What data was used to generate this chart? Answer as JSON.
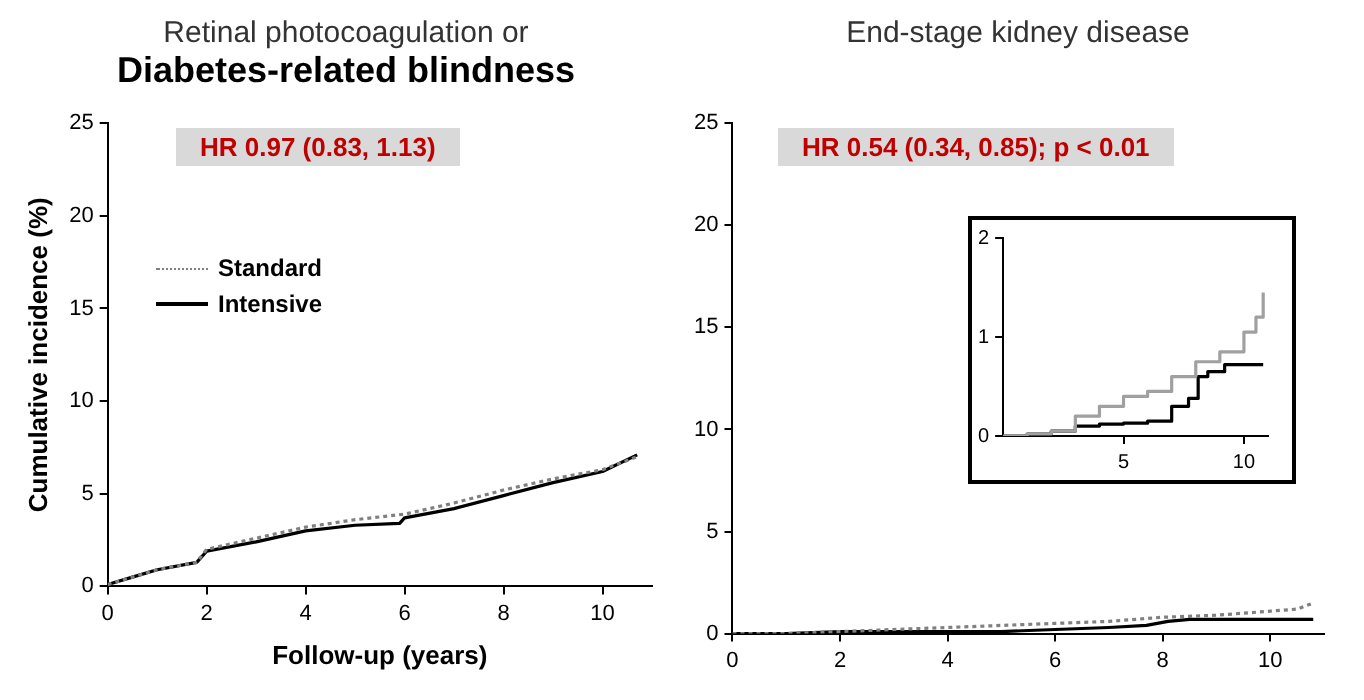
{
  "chart_data": [
    {
      "type": "line",
      "title": "Retinal photocoagulation or",
      "subtitle": "Diabetes-related blindness",
      "xlabel": "Follow-up (years)",
      "ylabel": "Cumulative incidence (%)",
      "annotations": [
        "HR 0.97 (0.83, 1.13)"
      ],
      "xlim": [
        0,
        11
      ],
      "ylim": [
        0,
        25
      ],
      "xticks": [
        0,
        2,
        4,
        6,
        8,
        10
      ],
      "yticks": [
        0,
        5,
        10,
        15,
        20,
        25
      ],
      "grid": false,
      "legend": "top left",
      "marker": "none",
      "series": [
        {
          "name": "Standard",
          "color": "#808080",
          "line_style": "dotted",
          "x": [
            0,
            0.5,
            1,
            1.8,
            2,
            3,
            4,
            5,
            6,
            7,
            8,
            9,
            10,
            10.7
          ],
          "values": [
            0.1,
            0.5,
            0.9,
            1.3,
            2.0,
            2.6,
            3.2,
            3.6,
            3.9,
            4.5,
            5.2,
            5.8,
            6.3,
            7.0
          ]
        },
        {
          "name": "Intensive",
          "color": "#000000",
          "line_style": "solid",
          "x": [
            0,
            0.5,
            1,
            1.8,
            2,
            3,
            4,
            5,
            5.9,
            6,
            7,
            8,
            9,
            10,
            10.7
          ],
          "values": [
            0.1,
            0.5,
            0.9,
            1.3,
            1.9,
            2.4,
            3.0,
            3.3,
            3.4,
            3.7,
            4.2,
            4.9,
            5.6,
            6.2,
            7.1
          ]
        }
      ]
    },
    {
      "type": "line",
      "title": "End-stage kidney disease",
      "annotations": [
        "HR 0.54 (0.34, 0.85); p < 0.01"
      ],
      "xlim": [
        0,
        11
      ],
      "ylim": [
        0,
        25
      ],
      "xticks": [
        0,
        2,
        4,
        6,
        8,
        10
      ],
      "yticks": [
        0,
        5,
        10,
        15,
        20,
        25
      ],
      "grid": false,
      "marker": "none",
      "series": [
        {
          "color": "#808080",
          "line_style": "dotted",
          "x": [
            0,
            1,
            2,
            3,
            4,
            5,
            6,
            7,
            8,
            9,
            10,
            10.5,
            10.8
          ],
          "values": [
            0,
            0,
            0.1,
            0.2,
            0.3,
            0.4,
            0.5,
            0.6,
            0.8,
            0.9,
            1.1,
            1.2,
            1.5
          ]
        },
        {
          "color": "#000000",
          "line_style": "solid",
          "x": [
            0,
            1,
            2,
            3,
            4,
            5,
            6,
            7,
            7.7,
            8.1,
            8.5,
            9.2,
            10.8
          ],
          "values": [
            0,
            0,
            0.1,
            0.1,
            0.1,
            0.1,
            0.2,
            0.3,
            0.4,
            0.6,
            0.7,
            0.7,
            0.7
          ]
        }
      ]
    },
    {
      "type": "step",
      "xlim": [
        0,
        11
      ],
      "ylim": [
        0,
        2
      ],
      "xticks": [
        5,
        10
      ],
      "yticks": [
        0,
        1,
        2
      ],
      "grid": false,
      "marker": "none",
      "series": [
        {
          "color": "#a0a0a0",
          "line_style": "solid",
          "x": [
            0,
            1,
            2,
            3,
            4,
            5,
            6,
            7,
            8,
            9,
            10,
            10.5,
            10.8
          ],
          "values": [
            0,
            0.02,
            0.05,
            0.2,
            0.3,
            0.4,
            0.45,
            0.6,
            0.75,
            0.85,
            1.05,
            1.2,
            1.45
          ]
        },
        {
          "color": "#000000",
          "line_style": "solid",
          "x": [
            0,
            1,
            2,
            3,
            4,
            5,
            6,
            7,
            7.7,
            8.1,
            8.5,
            9.2,
            10.8
          ],
          "values": [
            0,
            0.02,
            0.05,
            0.1,
            0.12,
            0.13,
            0.15,
            0.3,
            0.38,
            0.6,
            0.65,
            0.72,
            0.72
          ]
        }
      ]
    }
  ]
}
